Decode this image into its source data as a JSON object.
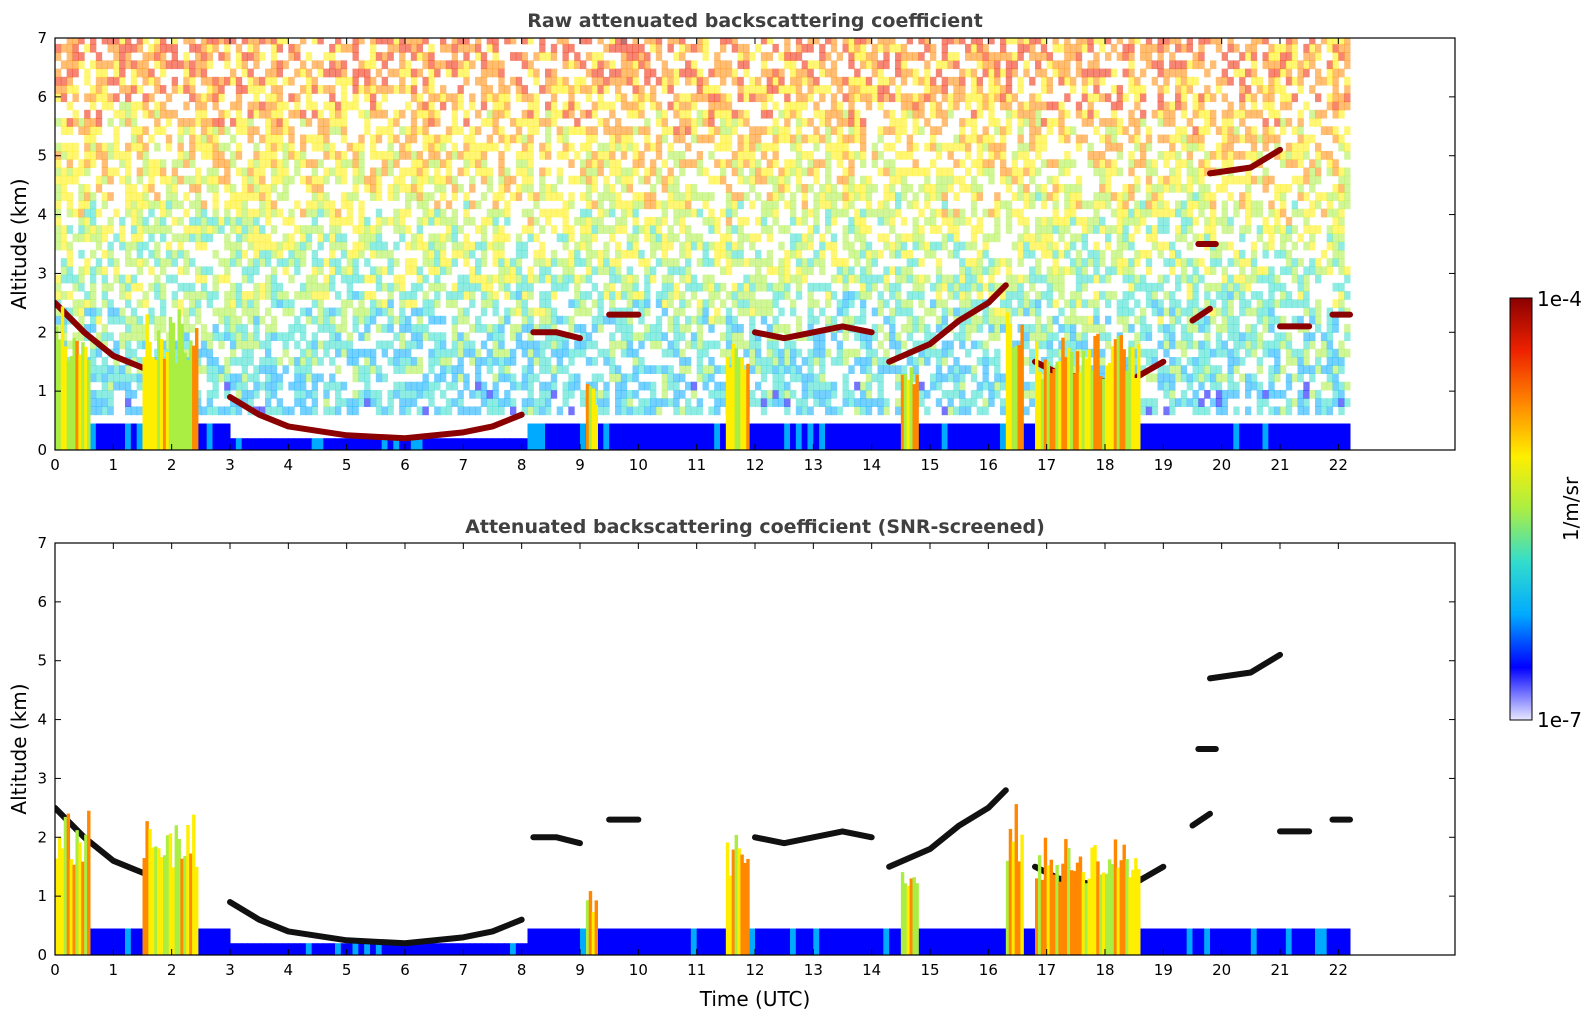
{
  "chart_data": [
    {
      "type": "heatmap",
      "title": "Raw attenuated backscattering coefficient",
      "xlabel": "",
      "ylabel": "Altitude (km)",
      "xlim": [
        0,
        24
      ],
      "ylim": [
        0,
        7
      ],
      "xticks": [
        "0",
        "1",
        "2",
        "3",
        "4",
        "5",
        "6",
        "7",
        "8",
        "9",
        "10",
        "11",
        "12",
        "13",
        "14",
        "15",
        "16",
        "17",
        "18",
        "19",
        "20",
        "21",
        "22"
      ],
      "yticks": [
        "0",
        "1",
        "2",
        "3",
        "4",
        "5",
        "6",
        "7"
      ],
      "data_end_time": 22.2,
      "cloud_layers": [
        {
          "t": [
            0,
            0.5,
            1.0,
            1.5,
            2.0
          ],
          "alt": [
            2.5,
            2.0,
            1.6,
            1.4,
            1.2
          ]
        },
        {
          "t": [
            3.0,
            3.5,
            4.0,
            5.0,
            6.0,
            7.0,
            7.5,
            8.0
          ],
          "alt": [
            0.9,
            0.6,
            0.4,
            0.25,
            0.2,
            0.3,
            0.4,
            0.6
          ]
        },
        {
          "t": [
            8.2,
            8.6,
            9.0
          ],
          "alt": [
            2.0,
            2.0,
            1.9
          ]
        },
        {
          "t": [
            9.5,
            10.0
          ],
          "alt": [
            2.3,
            2.3
          ]
        },
        {
          "t": [
            12.0,
            12.5,
            13.0,
            13.5,
            14.0
          ],
          "alt": [
            2.0,
            1.9,
            2.0,
            2.1,
            2.0
          ]
        },
        {
          "t": [
            14.3,
            15.0,
            15.5,
            16.0,
            16.3
          ],
          "alt": [
            1.5,
            1.8,
            2.2,
            2.5,
            2.8
          ]
        },
        {
          "t": [
            16.8,
            17.2,
            17.8,
            18.3,
            19.0
          ],
          "alt": [
            1.5,
            1.3,
            1.2,
            1.1,
            1.5
          ]
        },
        {
          "t": [
            19.5,
            19.8
          ],
          "alt": [
            2.2,
            2.4
          ]
        },
        {
          "t": [
            19.6,
            19.9
          ],
          "alt": [
            3.5,
            3.5
          ]
        },
        {
          "t": [
            19.8,
            20.5,
            21.0
          ],
          "alt": [
            4.7,
            4.8,
            5.1
          ]
        },
        {
          "t": [
            21.0,
            21.5
          ],
          "alt": [
            2.1,
            2.1
          ]
        },
        {
          "t": [
            21.9,
            22.2
          ],
          "alt": [
            2.3,
            2.3
          ]
        }
      ]
    },
    {
      "type": "heatmap",
      "title": "Attenuated backscattering coefficient (SNR-screened)",
      "xlabel": "Time (UTC)",
      "ylabel": "Altitude (km)",
      "xlim": [
        0,
        24
      ],
      "ylim": [
        0,
        7
      ],
      "xticks": [
        "0",
        "1",
        "2",
        "3",
        "4",
        "5",
        "6",
        "7",
        "8",
        "9",
        "10",
        "11",
        "12",
        "13",
        "14",
        "15",
        "16",
        "17",
        "18",
        "19",
        "20",
        "21",
        "22"
      ],
      "yticks": [
        "0",
        "1",
        "2",
        "3",
        "4",
        "5",
        "6",
        "7"
      ],
      "data_end_time": 22.2
    }
  ],
  "colorbar": {
    "label": "1/m/sr",
    "max_label": "1e-4",
    "min_label": "1e-7",
    "scale": "log",
    "colors": [
      "#e8e8ff",
      "#0000ff",
      "#00aaff",
      "#33ddcc",
      "#aaee44",
      "#ffee00",
      "#ff8800",
      "#ee2200",
      "#8b0000"
    ]
  }
}
